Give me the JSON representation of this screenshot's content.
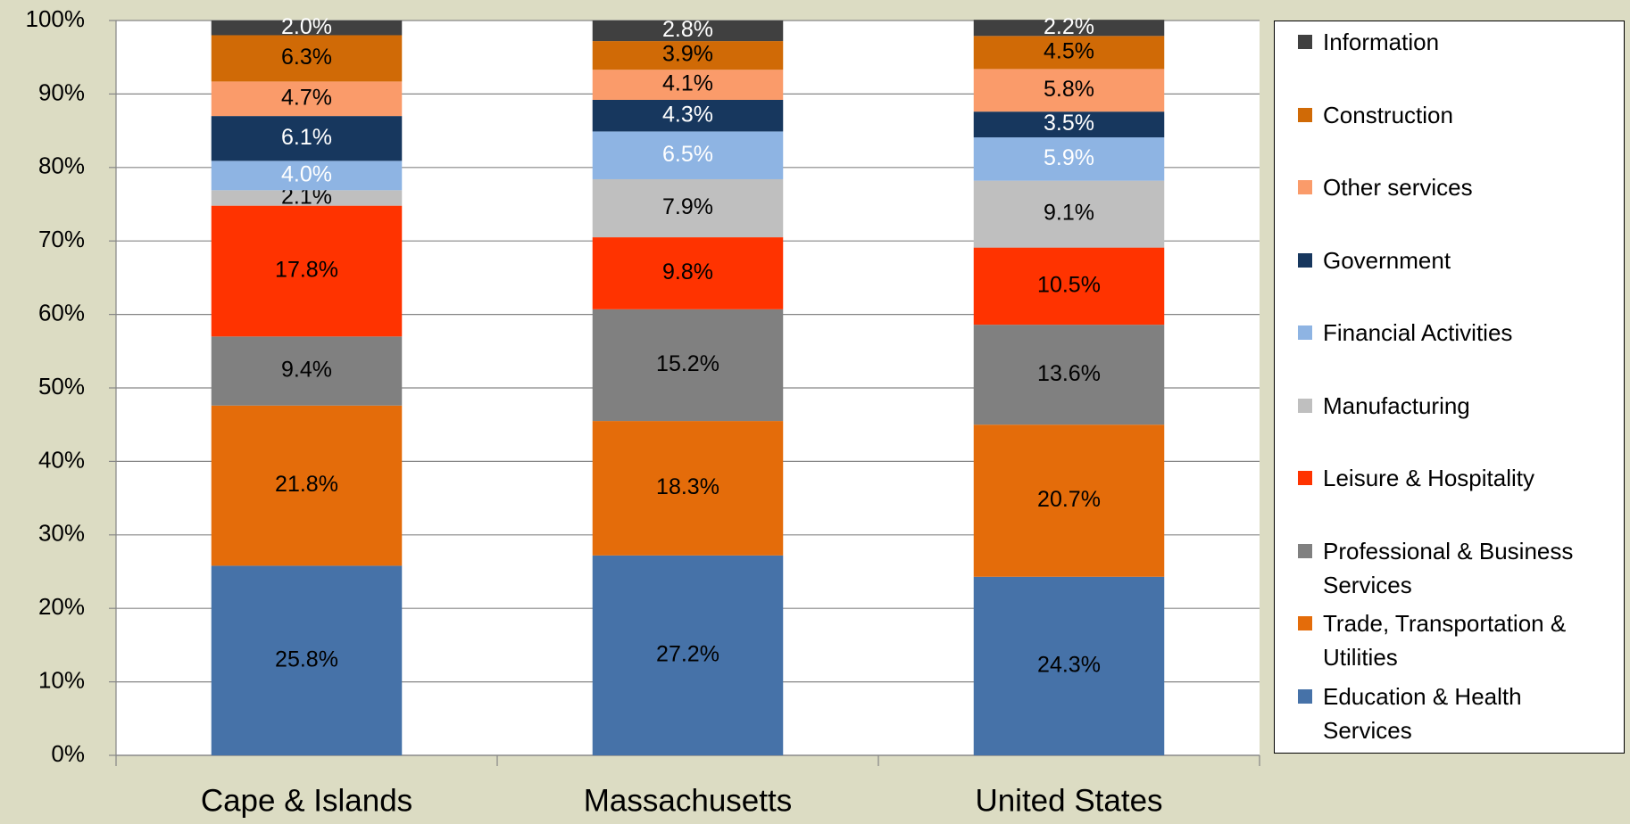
{
  "chart_data": {
    "type": "stacked-bar",
    "categories": [
      "Cape & Islands",
      "Massachusetts",
      "United States"
    ],
    "ylim": [
      0,
      100
    ],
    "yticks": [
      {
        "value": 0,
        "label": "0%"
      },
      {
        "value": 10,
        "label": "10%"
      },
      {
        "value": 20,
        "label": "20%"
      },
      {
        "value": 30,
        "label": "30%"
      },
      {
        "value": 40,
        "label": "40%"
      },
      {
        "value": 50,
        "label": "50%"
      },
      {
        "value": 60,
        "label": "60%"
      },
      {
        "value": 70,
        "label": "70%"
      },
      {
        "value": 80,
        "label": "80%"
      },
      {
        "value": 90,
        "label": "90%"
      },
      {
        "value": 100,
        "label": "100%"
      }
    ],
    "grid": true,
    "legend": "right",
    "series": [
      {
        "name": "Education & Health Services",
        "color": "#4672a8",
        "label_color": "#000000",
        "values": [
          25.8,
          27.2,
          24.3
        ],
        "value_labels": [
          "25.8%",
          "27.2%",
          "24.3%"
        ]
      },
      {
        "name": "Trade, Transportation & Utilities",
        "color": "#e46c0a",
        "label_color": "#000000",
        "values": [
          21.8,
          18.3,
          20.7
        ],
        "value_labels": [
          "21.8%",
          "18.3%",
          "20.7%"
        ]
      },
      {
        "name": "Professional & Business Services",
        "color": "#808080",
        "label_color": "#000000",
        "values": [
          9.4,
          15.2,
          13.6
        ],
        "value_labels": [
          "9.4%",
          "15.2%",
          "13.6%"
        ]
      },
      {
        "name": "Leisure & Hospitality",
        "color": "#ff3300",
        "label_color": "#000000",
        "values": [
          17.8,
          9.8,
          10.5
        ],
        "value_labels": [
          "17.8%",
          "9.8%",
          "10.5%"
        ]
      },
      {
        "name": "Manufacturing",
        "color": "#bfbfbf",
        "label_color": "#000000",
        "values": [
          2.1,
          7.9,
          9.1
        ],
        "value_labels": [
          "2.1%",
          "7.9%",
          "9.1%"
        ]
      },
      {
        "name": "Financial Activities",
        "color": "#8eb4e3",
        "label_color": "#ffffff",
        "values": [
          4.0,
          6.5,
          5.9
        ],
        "value_labels": [
          "4.0%",
          "6.5%",
          "5.9%"
        ]
      },
      {
        "name": "Government",
        "color": "#17375e",
        "label_color": "#ffffff",
        "values": [
          6.1,
          4.3,
          3.5
        ],
        "value_labels": [
          "6.1%",
          "4.3%",
          "3.5%"
        ]
      },
      {
        "name": "Other services",
        "color": "#fa9b6a",
        "label_color": "#000000",
        "values": [
          4.7,
          4.1,
          5.8
        ],
        "value_labels": [
          "4.7%",
          "4.1%",
          "5.8%"
        ]
      },
      {
        "name": "Construction",
        "color": "#d06a06",
        "label_color": "#000000",
        "values": [
          6.3,
          3.9,
          4.5
        ],
        "value_labels": [
          "6.3%",
          "3.9%",
          "4.5%"
        ]
      },
      {
        "name": "Information",
        "color": "#404040",
        "label_color": "#ffffff",
        "values": [
          2.0,
          2.8,
          2.2
        ],
        "value_labels": [
          "2.0%",
          "2.8%",
          "2.2%"
        ]
      }
    ]
  }
}
